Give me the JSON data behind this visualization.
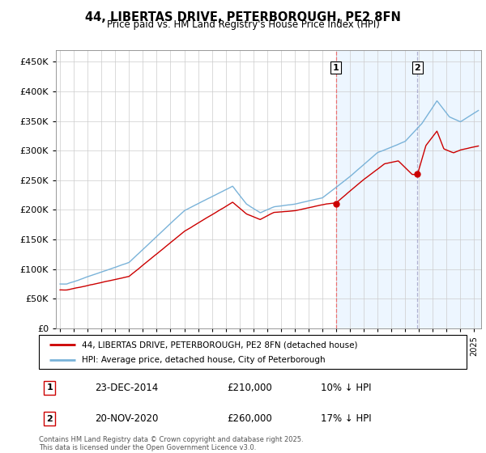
{
  "title": "44, LIBERTAS DRIVE, PETERBOROUGH, PE2 8FN",
  "subtitle": "Price paid vs. HM Land Registry's House Price Index (HPI)",
  "hpi_label": "HPI: Average price, detached house, City of Peterborough",
  "property_label": "44, LIBERTAS DRIVE, PETERBOROUGH, PE2 8FN (detached house)",
  "footer": "Contains HM Land Registry data © Crown copyright and database right 2025.\nThis data is licensed under the Open Government Licence v3.0.",
  "hpi_color": "#7ab3d9",
  "property_color": "#cc0000",
  "vline1_color": "#ee6666",
  "vline2_color": "#aaaacc",
  "annotation1": {
    "num": "1",
    "date": "23-DEC-2014",
    "price": "£210,000",
    "hpi_diff": "10% ↓ HPI",
    "x_year": 2014.97
  },
  "annotation2": {
    "num": "2",
    "date": "20-NOV-2020",
    "price": "£260,000",
    "hpi_diff": "17% ↓ HPI",
    "x_year": 2020.88
  },
  "ylim": [
    0,
    470000
  ],
  "yticks": [
    0,
    50000,
    100000,
    150000,
    200000,
    250000,
    300000,
    350000,
    400000,
    450000
  ],
  "xlim_left": 1994.7,
  "xlim_right": 2025.5,
  "background_color": "#ffffff",
  "grid_color": "#cccccc",
  "shade_color": "#ddeeff",
  "shade_alpha": 0.5
}
